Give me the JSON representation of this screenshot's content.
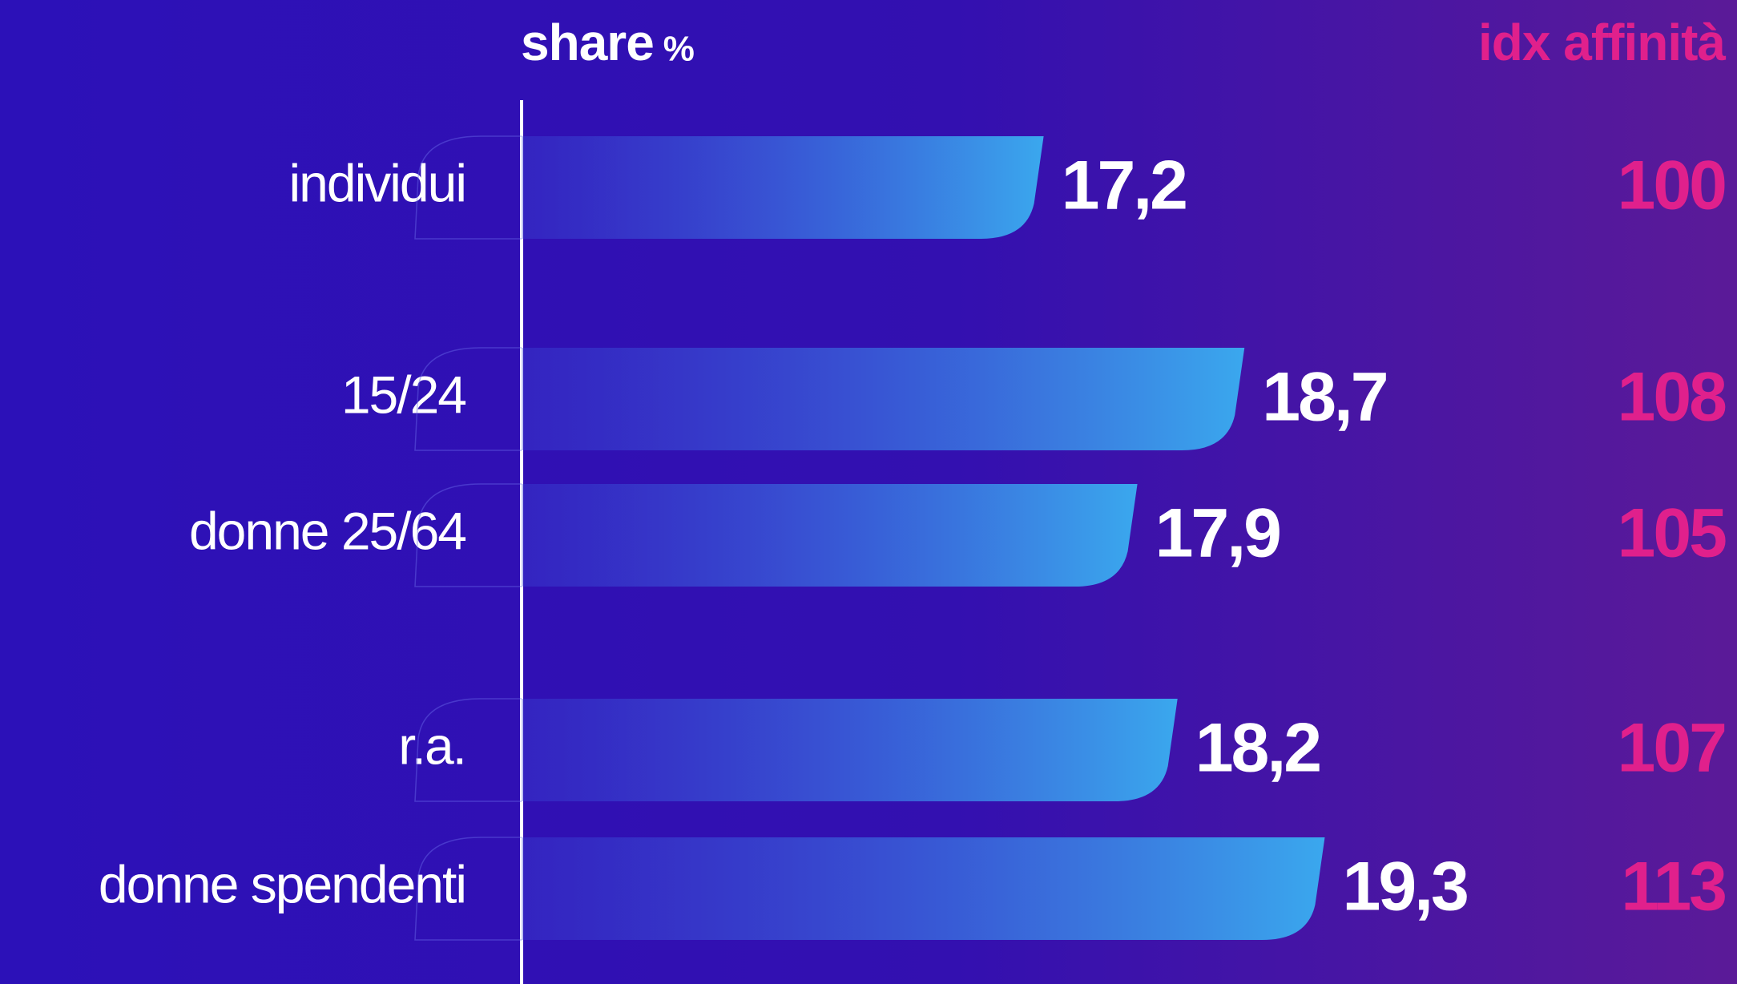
{
  "chart_data": {
    "type": "bar",
    "orientation": "horizontal",
    "title": "share",
    "unit": "%",
    "index_title": "idx affinità",
    "categories": [
      "individui",
      "15/24",
      "donne 25/64",
      "r.a.",
      "donne spendenti"
    ],
    "values": [
      17.2,
      18.7,
      17.9,
      18.2,
      19.3
    ],
    "value_labels": [
      "17,2",
      "18,7",
      "17,9",
      "18,2",
      "19,3"
    ],
    "index_values": [
      100,
      108,
      105,
      107,
      113
    ],
    "xlim": [
      13.3,
      20.5
    ],
    "bar_color": "#3aa8ee",
    "index_color": "#e0208c"
  }
}
